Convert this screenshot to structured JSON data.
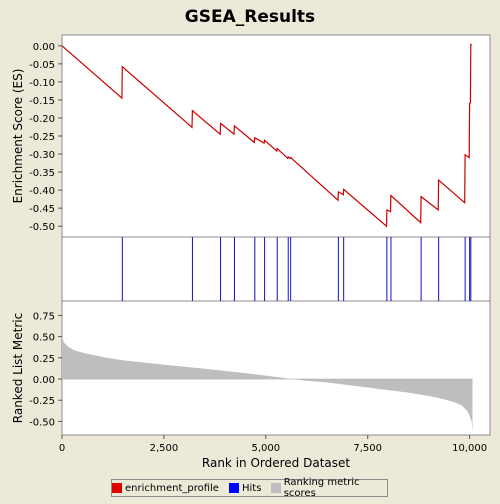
{
  "title": "GSEA_Results",
  "colors": {
    "enrichment": "#cc0000",
    "hits": "#1010c8",
    "ranking": "#bebebe",
    "background": "#ece9d8"
  },
  "legend": [
    {
      "label": "enrichment_profile",
      "color": "#e00000"
    },
    {
      "label": "Hits",
      "color": "#0000ff"
    },
    {
      "label": "Ranking metric scores",
      "color": "#bebebe"
    }
  ],
  "chart_data": [
    {
      "type": "line",
      "ylabel": "Enrichment Score (ES)",
      "xlim": [
        0,
        10500
      ],
      "ylim": [
        -0.53,
        0.03
      ],
      "y_ticks": [
        "0.00",
        "-0.05",
        "-0.10",
        "-0.15",
        "-0.20",
        "-0.25",
        "-0.30",
        "-0.35",
        "-0.40",
        "-0.45",
        "-0.50"
      ],
      "y_tick_values": [
        0,
        -0.05,
        -0.1,
        -0.15,
        -0.2,
        -0.25,
        -0.3,
        -0.35,
        -0.4,
        -0.45,
        -0.5
      ],
      "series": [
        {
          "x": [
            0,
            1470,
            1480,
            3190,
            3200,
            3880,
            3890,
            4220,
            4230,
            4720,
            4730,
            4960,
            4970,
            5270,
            5280,
            5540,
            5550,
            5600,
            5610,
            6770,
            6780,
            6900,
            6910,
            7960,
            7970,
            8060,
            8070,
            8800,
            8810,
            9230,
            9240,
            9880,
            9890,
            9990,
            10000,
            10020,
            10030,
            10050
          ],
          "y": [
            0.0,
            -0.145,
            -0.058,
            -0.226,
            -0.18,
            -0.245,
            -0.215,
            -0.245,
            -0.222,
            -0.268,
            -0.255,
            -0.27,
            -0.262,
            -0.292,
            -0.285,
            -0.312,
            -0.308,
            -0.312,
            -0.31,
            -0.428,
            -0.405,
            -0.413,
            -0.398,
            -0.5,
            -0.455,
            -0.46,
            -0.415,
            -0.49,
            -0.418,
            -0.455,
            -0.372,
            -0.435,
            -0.302,
            -0.31,
            -0.16,
            -0.158,
            0.004,
            0.003
          ]
        }
      ]
    },
    {
      "type": "barcode",
      "xlim": [
        0,
        10500
      ],
      "hits": [
        1480,
        3200,
        3890,
        4230,
        4730,
        4970,
        5280,
        5550,
        5610,
        6780,
        6910,
        7970,
        8070,
        8810,
        9240,
        9890,
        10000,
        10030
      ]
    },
    {
      "type": "area",
      "xlabel": "Rank in Ordered Dataset",
      "ylabel": "Ranked List Metric",
      "xlim": [
        0,
        10500
      ],
      "ylim": [
        -0.66,
        0.92
      ],
      "x_ticks": [
        "0",
        "2,500",
        "5,000",
        "7,500",
        "10,000"
      ],
      "x_tick_values": [
        0,
        2500,
        5000,
        7500,
        10000
      ],
      "y_ticks": [
        "0.75",
        "0.50",
        "0.25",
        "0.00",
        "-0.25",
        "-0.50"
      ],
      "y_tick_values": [
        0.75,
        0.5,
        0.25,
        0,
        -0.25,
        -0.5
      ],
      "series": [
        {
          "x": [
            0,
            50,
            150,
            300,
            600,
            1000,
            1500,
            2500,
            3500,
            4500,
            5000,
            5500,
            6000,
            6500,
            7000,
            7500,
            8000,
            8500,
            9000,
            9300,
            9600,
            9800,
            9950,
            10050,
            10070
          ],
          "y": [
            0.5,
            0.43,
            0.38,
            0.34,
            0.3,
            0.26,
            0.22,
            0.17,
            0.12,
            0.07,
            0.04,
            0.01,
            -0.02,
            -0.04,
            -0.07,
            -0.1,
            -0.13,
            -0.16,
            -0.2,
            -0.23,
            -0.27,
            -0.31,
            -0.38,
            -0.5,
            -0.63
          ]
        }
      ]
    }
  ]
}
